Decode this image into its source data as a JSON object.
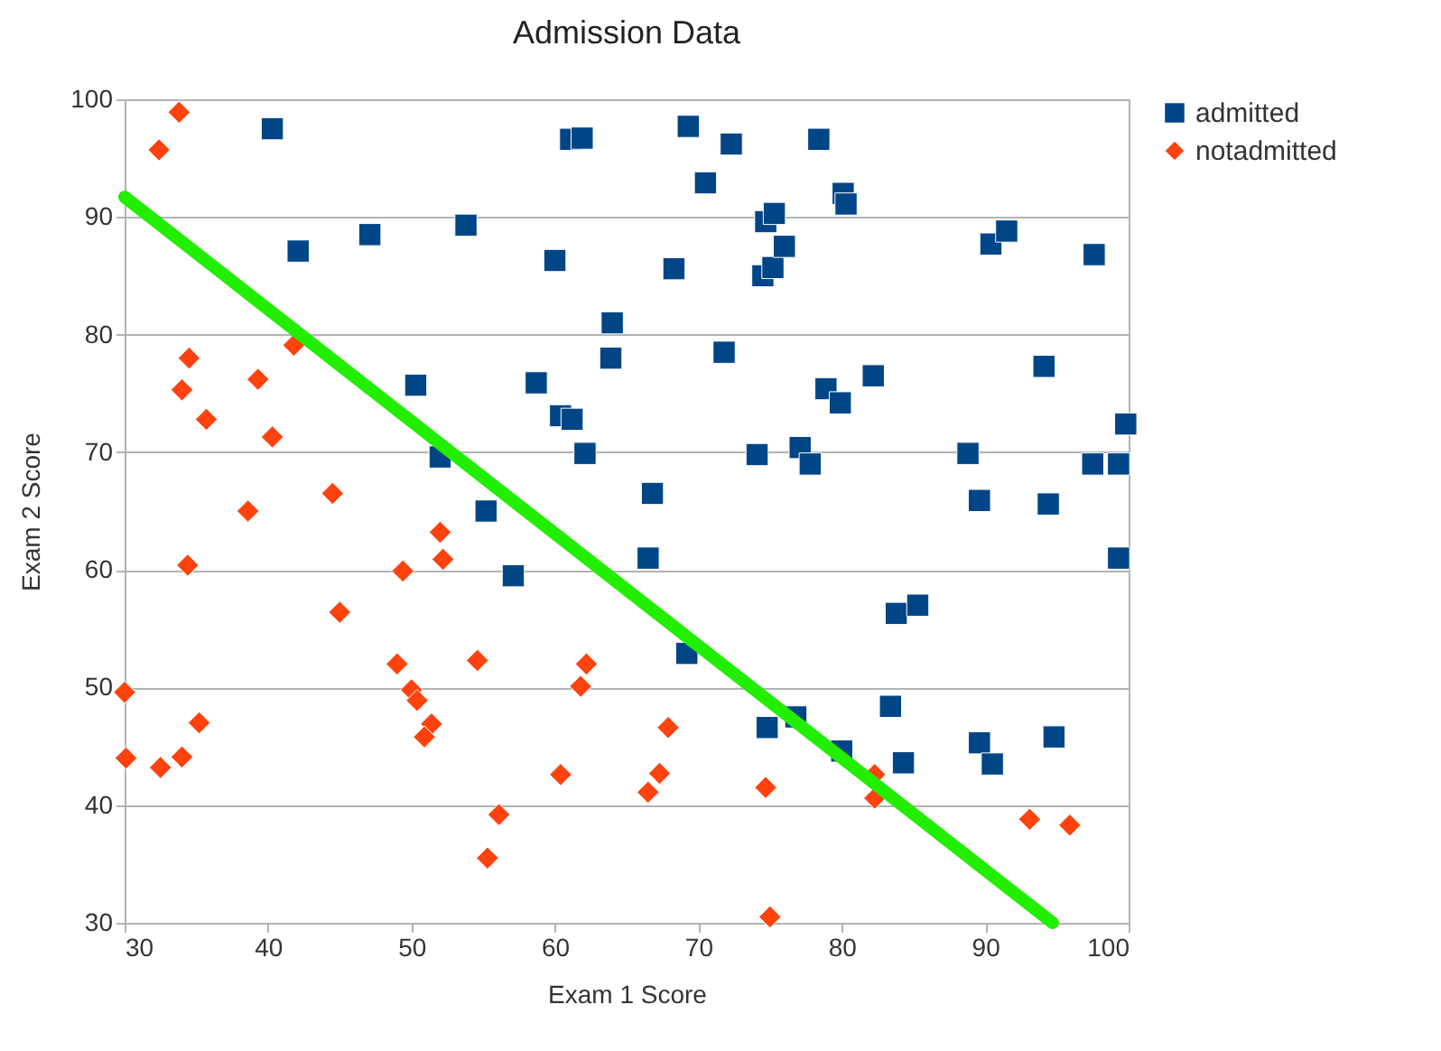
{
  "chart_data": {
    "type": "scatter",
    "title": "Admission Data",
    "xlabel": "Exam 1 Score",
    "ylabel": "Exam 2 Score",
    "xlim": [
      30,
      100
    ],
    "xticks": [
      30,
      40,
      50,
      60,
      70,
      80,
      90,
      100
    ],
    "ylim": [
      30,
      100
    ],
    "yticks": [
      30,
      40,
      50,
      60,
      70,
      80,
      90,
      100
    ],
    "grid": "y",
    "legend": "right",
    "series": [
      {
        "name": "admitted",
        "color": "#004586",
        "marker": "square",
        "x": [
          40.3,
          42.1,
          47.1,
          53.8,
          50.3,
          52.0,
          55.2,
          57.1,
          58.7,
          60.0,
          60.4,
          61.2,
          61.1,
          61.9,
          62.1,
          64.0,
          63.9,
          66.8,
          66.5,
          68.3,
          69.2,
          69.3,
          70.5,
          71.8,
          72.3,
          74.1,
          74.5,
          74.7,
          75.3,
          75.2,
          76.0,
          74.8,
          76.8,
          77.1,
          77.8,
          78.4,
          78.9,
          79.9,
          80.1,
          80.3,
          80.0,
          82.2,
          83.8,
          85.3,
          83.4,
          84.3,
          88.8,
          89.6,
          89.6,
          90.5,
          90.4,
          91.5,
          94.1,
          94.4,
          94.8,
          97.6,
          97.5,
          99.3,
          99.3,
          99.8
        ],
        "values": [
          97.5,
          87.1,
          88.5,
          89.3,
          75.7,
          69.6,
          65.0,
          59.5,
          75.9,
          86.3,
          73.1,
          72.8,
          96.6,
          96.7,
          69.9,
          81.0,
          78.0,
          66.5,
          61.0,
          85.6,
          52.9,
          97.7,
          92.9,
          78.5,
          96.2,
          69.8,
          85.0,
          89.6,
          90.3,
          85.7,
          87.5,
          46.6,
          47.5,
          70.4,
          69.0,
          96.6,
          75.4,
          74.2,
          92.0,
          91.1,
          44.6,
          76.5,
          56.3,
          57.0,
          48.4,
          43.6,
          69.9,
          65.9,
          45.3,
          43.5,
          87.7,
          88.8,
          77.3,
          65.6,
          45.8,
          86.8,
          69.0,
          69.0,
          61.0,
          72.4
        ]
      },
      {
        "name": "notadmitted",
        "color": "#ff420e",
        "marker": "diamond",
        "x": [
          33.8,
          32.4,
          34.5,
          34.0,
          35.7,
          39.3,
          40.3,
          41.8,
          38.6,
          44.5,
          34.4,
          45.0,
          49.4,
          52.0,
          52.2,
          49.0,
          50.0,
          50.4,
          51.4,
          50.9,
          54.6,
          30.0,
          30.1,
          32.5,
          34.0,
          35.2,
          56.1,
          55.3,
          60.4,
          61.8,
          62.2,
          66.5,
          67.3,
          67.9,
          74.7,
          75.0,
          82.3,
          82.3,
          93.1,
          95.9
        ],
        "values": [
          98.9,
          95.7,
          78.0,
          75.3,
          72.8,
          76.2,
          71.3,
          79.1,
          65.0,
          66.5,
          60.4,
          56.4,
          59.9,
          63.2,
          60.9,
          52.0,
          49.8,
          48.9,
          46.9,
          45.8,
          52.3,
          49.6,
          44.0,
          43.2,
          44.1,
          47.0,
          39.2,
          35.5,
          42.6,
          50.1,
          52.0,
          41.1,
          42.7,
          46.6,
          41.5,
          30.5,
          42.6,
          40.6,
          38.8,
          38.3
        ]
      },
      {
        "type": "line",
        "color": "#22ee00",
        "x": [
          30,
          94.7
        ],
        "values": [
          91.7,
          30
        ]
      }
    ]
  }
}
